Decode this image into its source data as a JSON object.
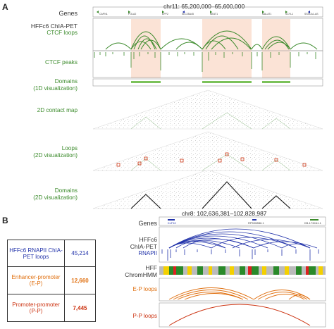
{
  "panel_a": {
    "letter": "A",
    "coordinate": "chr11: 65,200,000–65,600,000",
    "labels": {
      "genes": "Genes",
      "chiapet": "HFFc6 ChIA-PET",
      "ctcf_loops": "CTCF loops",
      "ctcf_peaks": "CTCF peaks",
      "domains1": "Domains",
      "domains1_sub": "(1D visualization)",
      "map2d": "2D contact map",
      "loops2d": "Loops",
      "loops2d_sub": "(2D visualization)",
      "domains2d": "Domains",
      "domains2d_sub": "(2D visualization)"
    },
    "gene_names": [
      "CAPN1",
      "POLA2",
      "DPF2",
      "SLC25A45",
      "NEAT1",
      "MALAT1",
      "SCYL1",
      "SSSCA1-AS"
    ]
  },
  "panel_b": {
    "letter": "B",
    "coordinate": "chr8: 102,636,381–102,828,987",
    "table": [
      {
        "label": "HFFc6 RNAPII ChIA-PET loops",
        "value": "45,214",
        "color": "#2233aa"
      },
      {
        "label": "Enhancer-promoter (E-P)",
        "value": "12,660",
        "color": "#e07010"
      },
      {
        "label": "Promoter-promoter (P-P)",
        "value": "7,445",
        "color": "#cc3311"
      }
    ],
    "labels": {
      "genes": "Genes",
      "chiapet1": "HFFc6",
      "chiapet2": "ChIA-PET",
      "rnapii": "RNAPII",
      "hff": "HFF",
      "chromhmm": "ChromHMM",
      "ep": "E-P loops",
      "pp": "P-P loops"
    },
    "gene_names": [
      "KLF10",
      "RP5908B6.1",
      "KB-1732A1.1"
    ]
  },
  "colors": {
    "green": "#3a8a2a",
    "blue": "#2233aa",
    "orange": "#e07010",
    "red": "#cc3311",
    "domain_shade": "#fbe3d6"
  }
}
